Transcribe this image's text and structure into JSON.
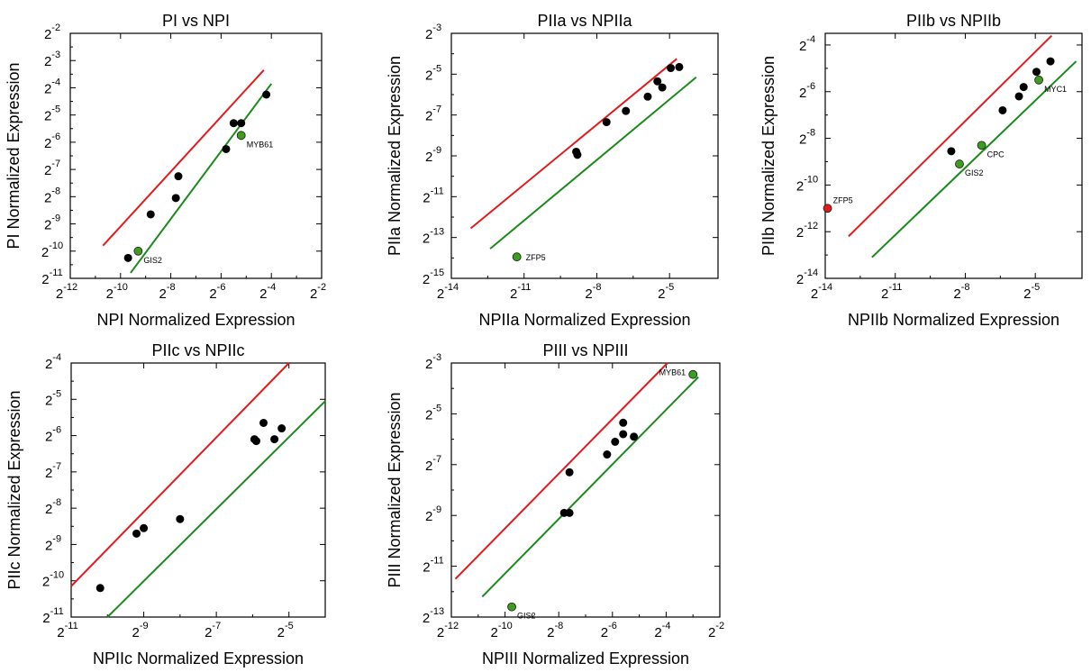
{
  "colors": {
    "upper_line": "#e31a1c",
    "lower_line": "#1a8a1a",
    "point": "#000000",
    "highlight_green": "#3c9d1e",
    "highlight_red": "#e31a1c"
  },
  "chart_data": [
    {
      "type": "scatter",
      "log_base": 2,
      "title": "PI vs NPI",
      "xlabel": "NPI Normalized Expression",
      "ylabel": "PI Normalized Expression",
      "xlim_exp": [
        -12,
        -2
      ],
      "ylim_exp": [
        -11,
        -2
      ],
      "xticks_exp": [
        -12,
        -10,
        -8,
        -6,
        -4,
        -2
      ],
      "yticks_exp": [
        -11,
        -10,
        -9,
        -8,
        -7,
        -6,
        -5,
        -4,
        -3,
        -2
      ],
      "upper_line_exp": [
        [
          -10.7,
          -9.8
        ],
        [
          -4.3,
          -3.35
        ]
      ],
      "lower_line_exp": [
        [
          -9.6,
          -10.8
        ],
        [
          -4.0,
          -3.85
        ]
      ],
      "points_exp": [
        [
          -9.7,
          -10.25
        ],
        [
          -8.8,
          -8.65
        ],
        [
          -7.7,
          -7.25
        ],
        [
          -7.8,
          -8.05
        ],
        [
          -5.8,
          -6.25
        ],
        [
          -5.5,
          -5.3
        ],
        [
          -5.2,
          -5.3
        ],
        [
          -4.2,
          -4.25
        ]
      ],
      "highlights": [
        {
          "label": "GIS2",
          "x_exp": -9.3,
          "y_exp": -10.0,
          "color": "green"
        },
        {
          "label": "MYB61",
          "x_exp": -5.2,
          "y_exp": -5.75,
          "color": "green"
        }
      ]
    },
    {
      "type": "scatter",
      "log_base": 2,
      "title": "PIIa vs NPIIa",
      "xlabel": "NPIIa Normalized Expression",
      "ylabel": "PIIa Normalized Expression",
      "xlim_exp": [
        -14,
        -3
      ],
      "ylim_exp": [
        -15,
        -3
      ],
      "xticks_exp": [
        -14,
        -11,
        -8,
        -5
      ],
      "yticks_exp": [
        -15,
        -13,
        -11,
        -9,
        -7,
        -5,
        -3
      ],
      "upper_line_exp": [
        [
          -13.2,
          -12.55
        ],
        [
          -4.7,
          -4.25
        ]
      ],
      "lower_line_exp": [
        [
          -12.4,
          -13.55
        ],
        [
          -3.9,
          -5.15
        ]
      ],
      "points_exp": [
        [
          -8.85,
          -8.8
        ],
        [
          -8.8,
          -8.95
        ],
        [
          -7.6,
          -7.35
        ],
        [
          -6.8,
          -6.8
        ],
        [
          -5.9,
          -6.1
        ],
        [
          -5.5,
          -5.35
        ],
        [
          -5.3,
          -5.65
        ],
        [
          -4.95,
          -4.7
        ],
        [
          -4.6,
          -4.65
        ]
      ],
      "highlights": [
        {
          "label": "ZFP5",
          "x_exp": -11.3,
          "y_exp": -13.95,
          "color": "green"
        }
      ]
    },
    {
      "type": "scatter",
      "log_base": 2,
      "title": "PIIb vs NPIIb",
      "xlabel": "NPIIb Normalized Expression",
      "ylabel": "PIIb Normalized Expression",
      "xlim_exp": [
        -14,
        -3
      ],
      "ylim_exp": [
        -14,
        -3.5
      ],
      "xticks_exp": [
        -14,
        -11,
        -8,
        -5
      ],
      "yticks_exp": [
        -14,
        -12,
        -10,
        -8,
        -6,
        -4
      ],
      "upper_line_exp": [
        [
          -13.0,
          -12.2
        ],
        [
          -4.3,
          -3.6
        ]
      ],
      "lower_line_exp": [
        [
          -12.0,
          -13.1
        ],
        [
          -3.25,
          -4.7
        ]
      ],
      "points_exp": [
        [
          -8.6,
          -8.55
        ],
        [
          -6.4,
          -6.8
        ],
        [
          -5.7,
          -6.2
        ],
        [
          -5.5,
          -5.8
        ],
        [
          -4.95,
          -5.15
        ],
        [
          -4.35,
          -4.7
        ]
      ],
      "highlights": [
        {
          "label": "ZFP5",
          "x_exp": -13.9,
          "y_exp": -11.0,
          "color": "red"
        },
        {
          "label": "GIS2",
          "x_exp": -8.25,
          "y_exp": -9.1,
          "color": "green"
        },
        {
          "label": "CPC",
          "x_exp": -7.3,
          "y_exp": -8.3,
          "color": "green"
        },
        {
          "label": "MYC1",
          "x_exp": -4.85,
          "y_exp": -5.5,
          "color": "green"
        }
      ]
    },
    {
      "type": "scatter",
      "log_base": 2,
      "title": "PIIc vs NPIIc",
      "xlabel": "NPIIc Normalized Expression",
      "ylabel": "PIIc Normalized Expression",
      "xlim_exp": [
        -11,
        -4
      ],
      "ylim_exp": [
        -11,
        -4
      ],
      "xticks_exp": [
        -11,
        -9,
        -7,
        -5
      ],
      "yticks_exp": [
        -11,
        -10,
        -9,
        -8,
        -7,
        -6,
        -5,
        -4
      ],
      "upper_line_exp": [
        [
          -11.0,
          -10.15
        ],
        [
          -5.0,
          -4.0
        ]
      ],
      "lower_line_exp": [
        [
          -10.0,
          -11.0
        ],
        [
          -4.0,
          -5.05
        ]
      ],
      "points_exp": [
        [
          -10.2,
          -10.2
        ],
        [
          -9.2,
          -8.7
        ],
        [
          -9.0,
          -8.55
        ],
        [
          -8.0,
          -8.3
        ],
        [
          -5.95,
          -6.1
        ],
        [
          -5.9,
          -6.15
        ],
        [
          -5.7,
          -5.65
        ],
        [
          -5.4,
          -6.1
        ],
        [
          -5.2,
          -5.8
        ]
      ],
      "highlights": []
    },
    {
      "type": "scatter",
      "log_base": 2,
      "title": "PIII vs NPIII",
      "xlabel": "NPIII Normalized Expression",
      "ylabel": "PIII Normalized Expression",
      "xlim_exp": [
        -12,
        -2
      ],
      "ylim_exp": [
        -13,
        -3
      ],
      "xticks_exp": [
        -12,
        -10,
        -8,
        -6,
        -4,
        -2
      ],
      "yticks_exp": [
        -13,
        -11,
        -9,
        -7,
        -5,
        -3
      ],
      "upper_line_exp": [
        [
          -11.85,
          -11.5
        ],
        [
          -3.95,
          -3.0
        ]
      ],
      "lower_line_exp": [
        [
          -10.85,
          -12.2
        ],
        [
          -2.8,
          -3.55
        ]
      ],
      "points_exp": [
        [
          -7.8,
          -8.9
        ],
        [
          -7.6,
          -8.9
        ],
        [
          -7.6,
          -7.3
        ],
        [
          -6.2,
          -6.6
        ],
        [
          -5.9,
          -6.1
        ],
        [
          -5.6,
          -5.8
        ],
        [
          -5.6,
          -5.35
        ],
        [
          -5.2,
          -5.9
        ]
      ],
      "highlights": [
        {
          "label": "GIS2",
          "x_exp": -9.75,
          "y_exp": -12.6,
          "color": "green"
        },
        {
          "label": "MYB61",
          "x_exp": -3.0,
          "y_exp": -3.45,
          "color": "green"
        }
      ]
    }
  ]
}
